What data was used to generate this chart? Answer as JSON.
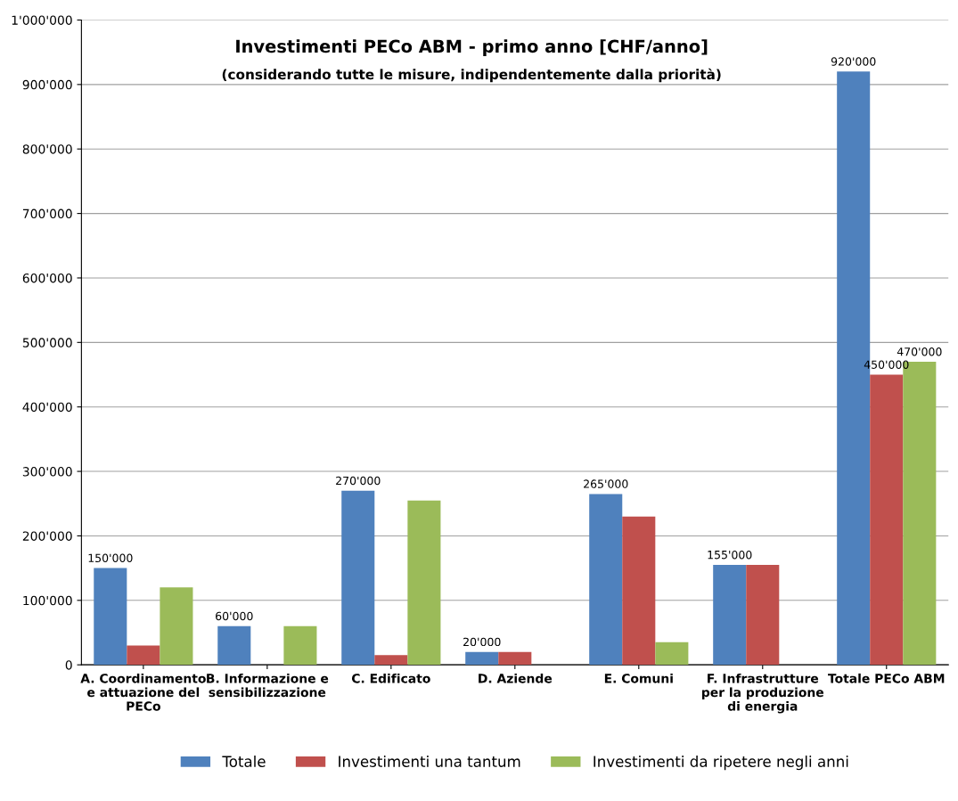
{
  "chart_data": {
    "type": "bar",
    "title": "Investimenti PECo ABM - primo anno [CHF/anno]",
    "subtitle": "(considerando tutte le misure, indipendentemente dalla priorità)",
    "categories": [
      "A. Coordinamento\ne attuazione del\nPECo",
      "B. Informazione e\nsensibilizzazione",
      "C. Edificato",
      "D. Aziende",
      "E. Comuni",
      "F. Infrastrutture\nper la produzione\ndi energia",
      "Totale PECo ABM"
    ],
    "series": [
      {
        "name": "Totale",
        "color": "#4f81bd",
        "values": [
          150000,
          60000,
          270000,
          20000,
          265000,
          155000,
          920000
        ],
        "value_labels": [
          "150'000",
          "60'000",
          "270'000",
          "20'000",
          "265'000",
          "155'000",
          "920'000"
        ]
      },
      {
        "name": "Investimenti una tantum",
        "color": "#c0504d",
        "values": [
          30000,
          null,
          15000,
          20000,
          230000,
          155000,
          450000
        ],
        "value_labels": [
          null,
          null,
          null,
          null,
          null,
          null,
          "450'000"
        ]
      },
      {
        "name": "Investimenti da ripetere negli anni",
        "color": "#9bbb59",
        "values": [
          120000,
          60000,
          255000,
          null,
          35000,
          null,
          470000
        ],
        "value_labels": [
          null,
          null,
          null,
          null,
          null,
          null,
          "470'000"
        ]
      }
    ],
    "ylim": [
      0,
      1000000
    ],
    "yticks": [
      {
        "value": 0,
        "label": "0"
      },
      {
        "value": 100000,
        "label": "100'000"
      },
      {
        "value": 200000,
        "label": "200'000"
      },
      {
        "value": 300000,
        "label": "300'000"
      },
      {
        "value": 400000,
        "label": "400'000"
      },
      {
        "value": 500000,
        "label": "500'000"
      },
      {
        "value": 600000,
        "label": "600'000"
      },
      {
        "value": 700000,
        "label": "700'000"
      },
      {
        "value": 800000,
        "label": "800'000"
      },
      {
        "value": 900000,
        "label": "900'000"
      },
      {
        "value": 1000000,
        "label": "1'000'000"
      }
    ],
    "grid": "y",
    "legend": "bottom"
  }
}
